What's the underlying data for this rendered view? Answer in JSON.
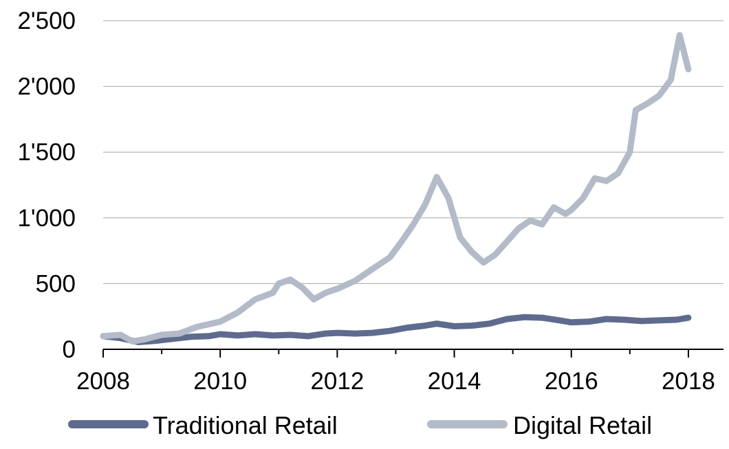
{
  "chart_data": {
    "type": "line",
    "title": "",
    "xlabel": "",
    "ylabel": "",
    "xlim": [
      2008,
      2018.6
    ],
    "ylim": [
      0,
      2500
    ],
    "grid": true,
    "legend_position": "bottom",
    "x_ticks": [
      2008,
      2010,
      2012,
      2014,
      2016,
      2018
    ],
    "x_tick_labels": [
      "2008",
      "2010",
      "2012",
      "2014",
      "2016",
      "2018"
    ],
    "y_ticks": [
      0,
      500,
      1000,
      1500,
      2000,
      2500
    ],
    "y_tick_labels": [
      "0",
      "500",
      "1'000",
      "1'500",
      "2'000",
      "2'500"
    ],
    "series": [
      {
        "name": "Traditional Retail",
        "color": "#5f6b8e",
        "x": [
          2008.0,
          2008.3,
          2008.6,
          2008.9,
          2009.2,
          2009.5,
          2009.8,
          2010.0,
          2010.3,
          2010.6,
          2010.9,
          2011.2,
          2011.5,
          2011.8,
          2012.0,
          2012.3,
          2012.6,
          2012.9,
          2013.2,
          2013.5,
          2013.7,
          2014.0,
          2014.3,
          2014.6,
          2014.9,
          2015.2,
          2015.5,
          2015.8,
          2016.0,
          2016.3,
          2016.6,
          2016.9,
          2017.2,
          2017.5,
          2017.8,
          2018.0
        ],
        "y": [
          100,
          85,
          55,
          65,
          80,
          95,
          100,
          115,
          105,
          115,
          105,
          110,
          100,
          120,
          125,
          120,
          125,
          140,
          165,
          180,
          195,
          175,
          180,
          195,
          230,
          245,
          240,
          220,
          205,
          210,
          230,
          225,
          215,
          220,
          225,
          240
        ]
      },
      {
        "name": "Digital Retail",
        "color": "#b3bac8",
        "x": [
          2008.0,
          2008.3,
          2008.5,
          2008.7,
          2009.0,
          2009.3,
          2009.6,
          2010.0,
          2010.3,
          2010.6,
          2010.9,
          2011.0,
          2011.2,
          2011.4,
          2011.6,
          2011.8,
          2012.0,
          2012.3,
          2012.6,
          2012.9,
          2013.1,
          2013.3,
          2013.5,
          2013.7,
          2013.9,
          2014.1,
          2014.3,
          2014.5,
          2014.7,
          2014.9,
          2015.1,
          2015.3,
          2015.5,
          2015.7,
          2015.9,
          2016.0,
          2016.2,
          2016.4,
          2016.6,
          2016.8,
          2017.0,
          2017.1,
          2017.3,
          2017.5,
          2017.7,
          2017.85,
          2018.0
        ],
        "y": [
          100,
          110,
          60,
          75,
          110,
          120,
          170,
          210,
          280,
          380,
          430,
          500,
          530,
          470,
          380,
          430,
          460,
          520,
          610,
          700,
          820,
          950,
          1100,
          1310,
          1150,
          850,
          740,
          660,
          720,
          820,
          920,
          980,
          950,
          1080,
          1030,
          1060,
          1150,
          1300,
          1280,
          1340,
          1500,
          1820,
          1870,
          1930,
          2050,
          2390,
          2130
        ]
      }
    ]
  }
}
